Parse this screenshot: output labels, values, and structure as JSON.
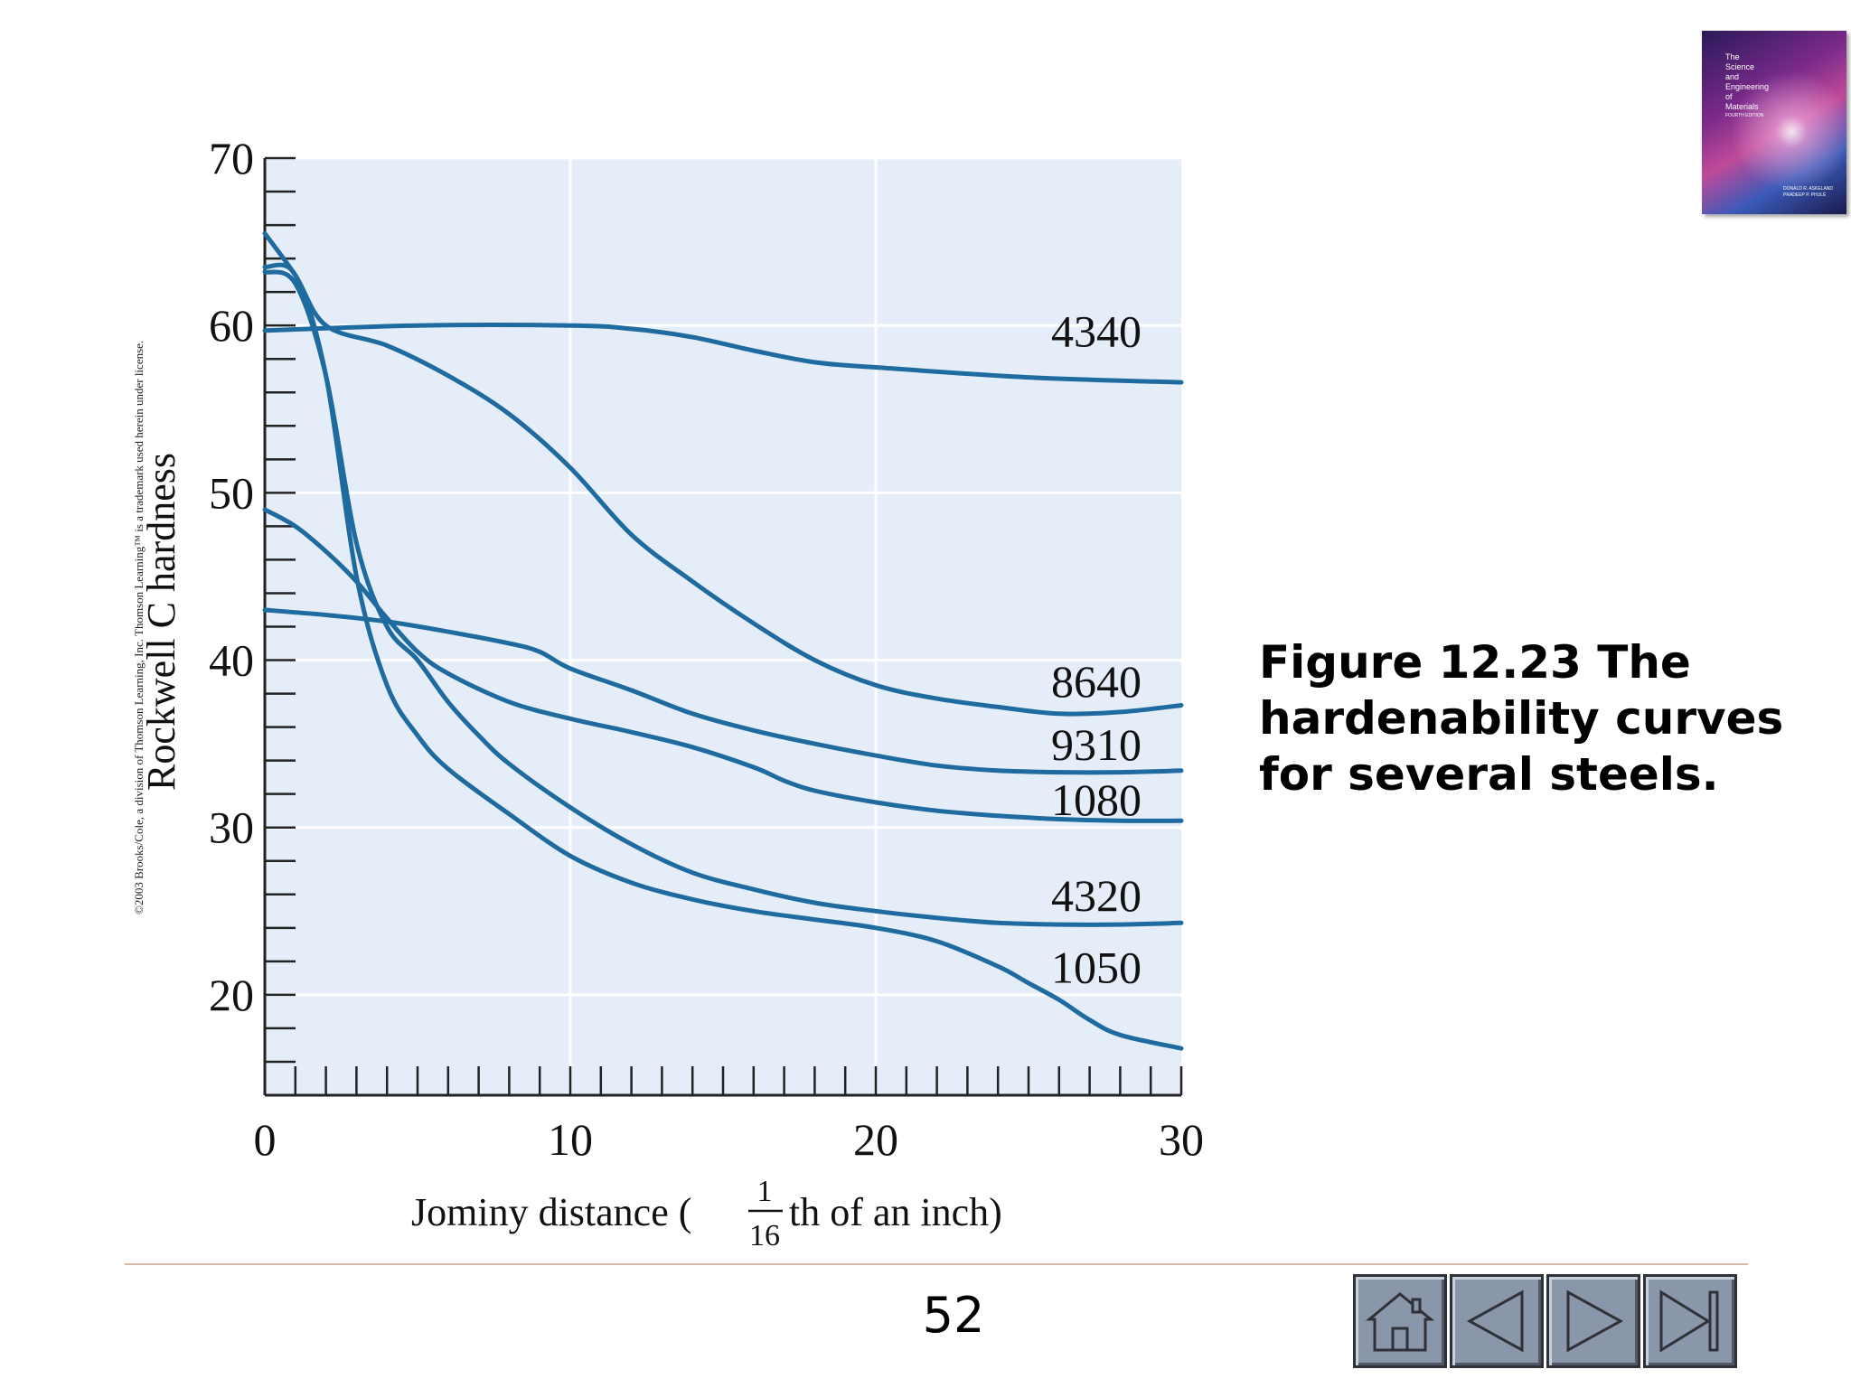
{
  "chart_data": {
    "type": "line",
    "xlabel": "Jominy distance (1/16th of an inch)",
    "xlabel_pre": "Jominy distance (",
    "xlabel_frac_num": "1",
    "xlabel_frac_den": "16",
    "xlabel_post": "th of an inch)",
    "ylabel": "Rockwell C hardness",
    "xlim": [
      0,
      30
    ],
    "ylim": [
      14,
      70
    ],
    "xticks": [
      0,
      10,
      20,
      30
    ],
    "yticks": [
      20,
      30,
      40,
      50,
      60,
      70
    ],
    "grid": true,
    "series": [
      {
        "name": "4340",
        "x": [
          0,
          5,
          10,
          12,
          14,
          16,
          18,
          20,
          25,
          30
        ],
        "y": [
          59.7,
          60,
          60,
          59.8,
          59.3,
          58.5,
          57.8,
          57.5,
          56.9,
          56.6
        ]
      },
      {
        "name": "8640",
        "x": [
          0,
          1,
          2,
          4,
          6,
          8,
          10,
          12,
          14,
          16,
          18,
          20,
          22,
          24,
          26,
          28,
          30
        ],
        "y": [
          65.5,
          63,
          60,
          58.8,
          57,
          54.7,
          51.5,
          47.5,
          44.7,
          42.2,
          40,
          38.5,
          37.7,
          37.2,
          36.8,
          36.9,
          37.3
        ]
      },
      {
        "name": "9310",
        "x": [
          0,
          2,
          4,
          6,
          8,
          9,
          10,
          12,
          14,
          16,
          18,
          20,
          22,
          24,
          26,
          28,
          30
        ],
        "y": [
          43,
          42.7,
          42.3,
          41.7,
          41,
          40.5,
          39.5,
          38.2,
          36.8,
          35.8,
          35,
          34.3,
          33.7,
          33.4,
          33.3,
          33.3,
          33.4
        ]
      },
      {
        "name": "1080",
        "x": [
          0,
          1,
          2,
          3,
          4,
          5,
          6,
          8,
          10,
          12,
          14,
          16,
          17,
          18,
          20,
          22,
          24,
          26,
          28,
          30
        ],
        "y": [
          49,
          48,
          46.5,
          44.7,
          42.5,
          40.5,
          39.2,
          37.5,
          36.5,
          35.7,
          34.8,
          33.6,
          32.8,
          32.2,
          31.5,
          31,
          30.7,
          30.5,
          30.4,
          30.4
        ]
      },
      {
        "name": "4320",
        "x": [
          0,
          1,
          2,
          3,
          4,
          5,
          6,
          7,
          8,
          10,
          12,
          14,
          16,
          18,
          20,
          22,
          24,
          26,
          28,
          30
        ],
        "y": [
          63.2,
          62.5,
          57,
          47,
          42,
          40,
          37.5,
          35.5,
          33.8,
          31.2,
          29,
          27.3,
          26.3,
          25.5,
          25,
          24.6,
          24.3,
          24.2,
          24.2,
          24.3
        ]
      },
      {
        "name": "1050",
        "x": [
          0,
          1,
          2,
          3,
          4,
          5,
          6,
          8,
          10,
          12,
          14,
          16,
          18,
          20,
          22,
          24,
          25,
          26,
          27,
          28,
          30
        ],
        "y": [
          63.5,
          63,
          57,
          45,
          38.5,
          35.5,
          33.5,
          30.8,
          28.3,
          26.7,
          25.7,
          25,
          24.5,
          24,
          23.2,
          21.7,
          20.7,
          19.7,
          18.5,
          17.6,
          16.8
        ]
      }
    ]
  },
  "caption": {
    "line1": "Figure 12.23  The",
    "line2": "hardenability curves",
    "line3": "for several steels."
  },
  "copyright": "©2003 Brooks/Cole, a division of Thomson Learning, Inc.  Thomson Learning™ is a trademark used herein under license.",
  "book_cover": {
    "title_lines": [
      "The",
      "Science",
      "and",
      "Engineering",
      "of",
      "Materials",
      "FOURTH EDITION"
    ],
    "authors": [
      "DONALD R. ASKELAND",
      "PRADEEP P. PHULÉ"
    ]
  },
  "page_number": "52",
  "nav": {
    "home": "home-icon",
    "prev": "previous-icon",
    "next": "next-icon",
    "last": "last-icon",
    "color": "#8a96aa"
  },
  "colors": {
    "plot_bg": "#e5eef8",
    "curve": "#1f6a9e",
    "grid": "#ffffff"
  }
}
